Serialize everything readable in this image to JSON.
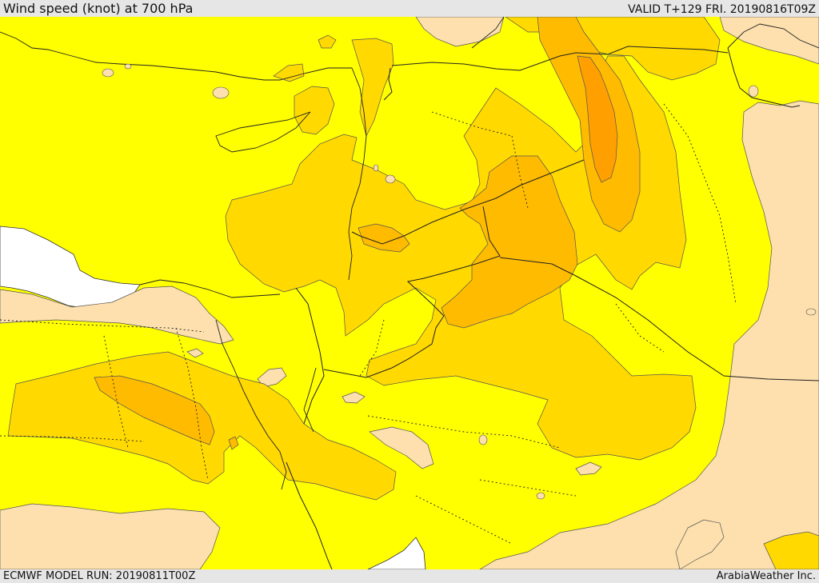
{
  "header": {
    "title": "Wind speed (knot) at 700 hPa",
    "valid": "VALID T+129 FRI. 20190816T09Z"
  },
  "footer": {
    "model_run": "ECMWF MODEL RUN: 20190811T00Z",
    "credit": "ArabiaWeather Inc."
  },
  "map": {
    "variable": "wind speed at 700 hPa",
    "colors": {
      "calm": "#fde0ad",
      "yellow": "#ffff00",
      "gold": "#ffd900",
      "amber": "#ffbb00",
      "orange": "#ff9f00",
      "sea": "#ffffff"
    }
  }
}
